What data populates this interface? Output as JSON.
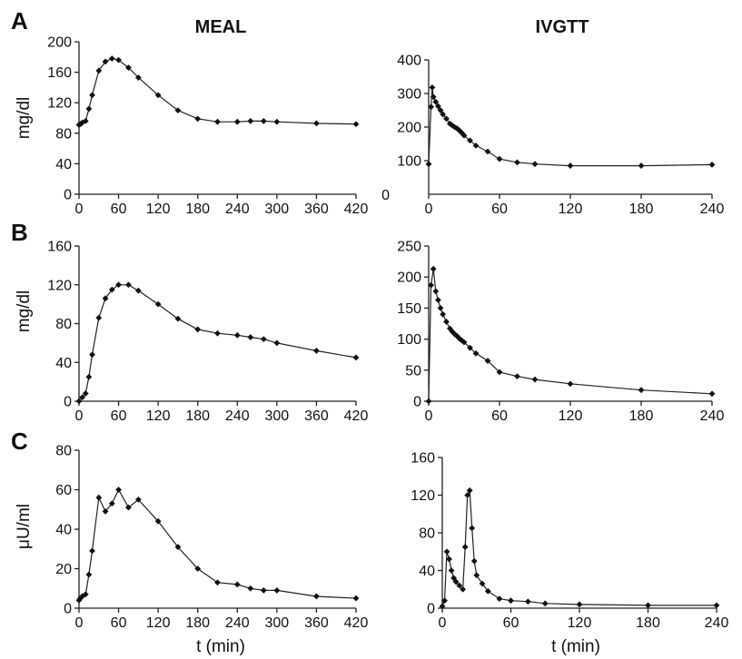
{
  "figure": {
    "col_titles": {
      "left": "MEAL",
      "right": "IVGTT"
    },
    "panel_letters": {
      "a": "A",
      "b": "B",
      "c": "C"
    },
    "y_labels": {
      "a": "mg/dl",
      "b": "mg/dl",
      "c": "μU/ml"
    },
    "x_labels": {
      "left": "t (min)",
      "right": "t (min)"
    }
  },
  "chart_data": [
    {
      "type": "line",
      "panel": "A-MEAL",
      "xlim": [
        0,
        420
      ],
      "ylim": [
        0,
        200
      ],
      "xticks": [
        0,
        60,
        120,
        180,
        240,
        300,
        360,
        420
      ],
      "yticks": [
        0,
        40,
        80,
        120,
        160,
        200
      ],
      "x": [
        0,
        2,
        5,
        10,
        15,
        20,
        30,
        40,
        50,
        60,
        75,
        90,
        120,
        150,
        180,
        210,
        240,
        260,
        280,
        300,
        360,
        420
      ],
      "y": [
        91,
        92,
        94,
        96,
        112,
        130,
        162,
        174,
        178,
        176,
        166,
        153,
        130,
        110,
        99,
        95,
        95,
        96,
        96,
        95,
        93,
        92
      ],
      "grid": false,
      "legend": "none"
    },
    {
      "type": "line",
      "panel": "A-IVGTT",
      "xlim": [
        0,
        240
      ],
      "ylim": [
        0,
        400
      ],
      "xticks": [
        0,
        60,
        120,
        180,
        240
      ],
      "yticks": [
        100,
        200,
        300,
        400
      ],
      "yticks_outside": [
        0
      ],
      "x": [
        0,
        2,
        3,
        4,
        6,
        8,
        10,
        12,
        15,
        18,
        20,
        22,
        24,
        26,
        28,
        30,
        35,
        40,
        50,
        60,
        75,
        90,
        120,
        180,
        240
      ],
      "y": [
        90,
        260,
        318,
        290,
        275,
        262,
        250,
        238,
        225,
        210,
        205,
        200,
        196,
        190,
        183,
        175,
        160,
        145,
        127,
        105,
        95,
        90,
        85,
        85,
        88
      ],
      "grid": false,
      "legend": "none"
    },
    {
      "type": "line",
      "panel": "B-MEAL",
      "xlim": [
        0,
        420
      ],
      "ylim": [
        0,
        160
      ],
      "xticks": [
        0,
        60,
        120,
        180,
        240,
        300,
        360,
        420
      ],
      "yticks": [
        0,
        40,
        80,
        120,
        160
      ],
      "x": [
        0,
        5,
        10,
        15,
        20,
        30,
        40,
        50,
        60,
        75,
        90,
        120,
        150,
        180,
        210,
        240,
        260,
        280,
        300,
        360,
        420
      ],
      "y": [
        0,
        4,
        8,
        25,
        48,
        86,
        106,
        115,
        120,
        120,
        114,
        100,
        85,
        74,
        70,
        68,
        66,
        64,
        60,
        52,
        45
      ],
      "grid": false,
      "legend": "none"
    },
    {
      "type": "line",
      "panel": "B-IVGTT",
      "xlim": [
        0,
        240
      ],
      "ylim": [
        0,
        250
      ],
      "xticks": [
        0,
        60,
        120,
        180,
        240
      ],
      "yticks": [
        0,
        50,
        100,
        150,
        200,
        250
      ],
      "x": [
        0,
        2,
        4,
        6,
        8,
        10,
        12,
        15,
        18,
        20,
        22,
        24,
        26,
        28,
        30,
        35,
        40,
        50,
        60,
        75,
        90,
        120,
        180,
        240
      ],
      "y": [
        0,
        187,
        213,
        177,
        163,
        150,
        140,
        128,
        117,
        112,
        108,
        105,
        101,
        98,
        95,
        86,
        77,
        65,
        47,
        40,
        35,
        28,
        18,
        12
      ],
      "grid": false,
      "legend": "none"
    },
    {
      "type": "line",
      "panel": "C-MEAL",
      "xlim": [
        0,
        420
      ],
      "ylim": [
        0,
        80
      ],
      "xticks": [
        0,
        60,
        120,
        180,
        240,
        300,
        360,
        420
      ],
      "yticks": [
        0,
        20,
        40,
        60,
        80
      ],
      "x": [
        0,
        2,
        5,
        10,
        15,
        20,
        30,
        40,
        50,
        60,
        75,
        90,
        120,
        150,
        180,
        210,
        240,
        260,
        280,
        300,
        360,
        420
      ],
      "y": [
        4,
        5,
        6,
        7,
        17,
        29,
        56,
        49,
        53,
        60,
        51,
        55,
        44,
        31,
        20,
        13,
        12,
        10,
        9,
        9,
        6,
        5
      ],
      "grid": false,
      "legend": "none"
    },
    {
      "type": "line",
      "panel": "C-IVGTT",
      "xlim": [
        0,
        240
      ],
      "ylim": [
        0,
        160
      ],
      "xticks": [
        0,
        60,
        120,
        180,
        240
      ],
      "yticks": [
        0,
        40,
        80,
        120,
        160
      ],
      "x": [
        0,
        2,
        4,
        6,
        8,
        10,
        12,
        15,
        18,
        20,
        22,
        24,
        26,
        28,
        30,
        35,
        40,
        50,
        60,
        75,
        90,
        120,
        180,
        240
      ],
      "y": [
        2,
        8,
        60,
        52,
        40,
        32,
        28,
        24,
        20,
        65,
        120,
        125,
        85,
        50,
        35,
        26,
        18,
        10,
        8,
        7,
        5,
        4,
        3,
        3
      ],
      "grid": false,
      "legend": "none"
    }
  ]
}
